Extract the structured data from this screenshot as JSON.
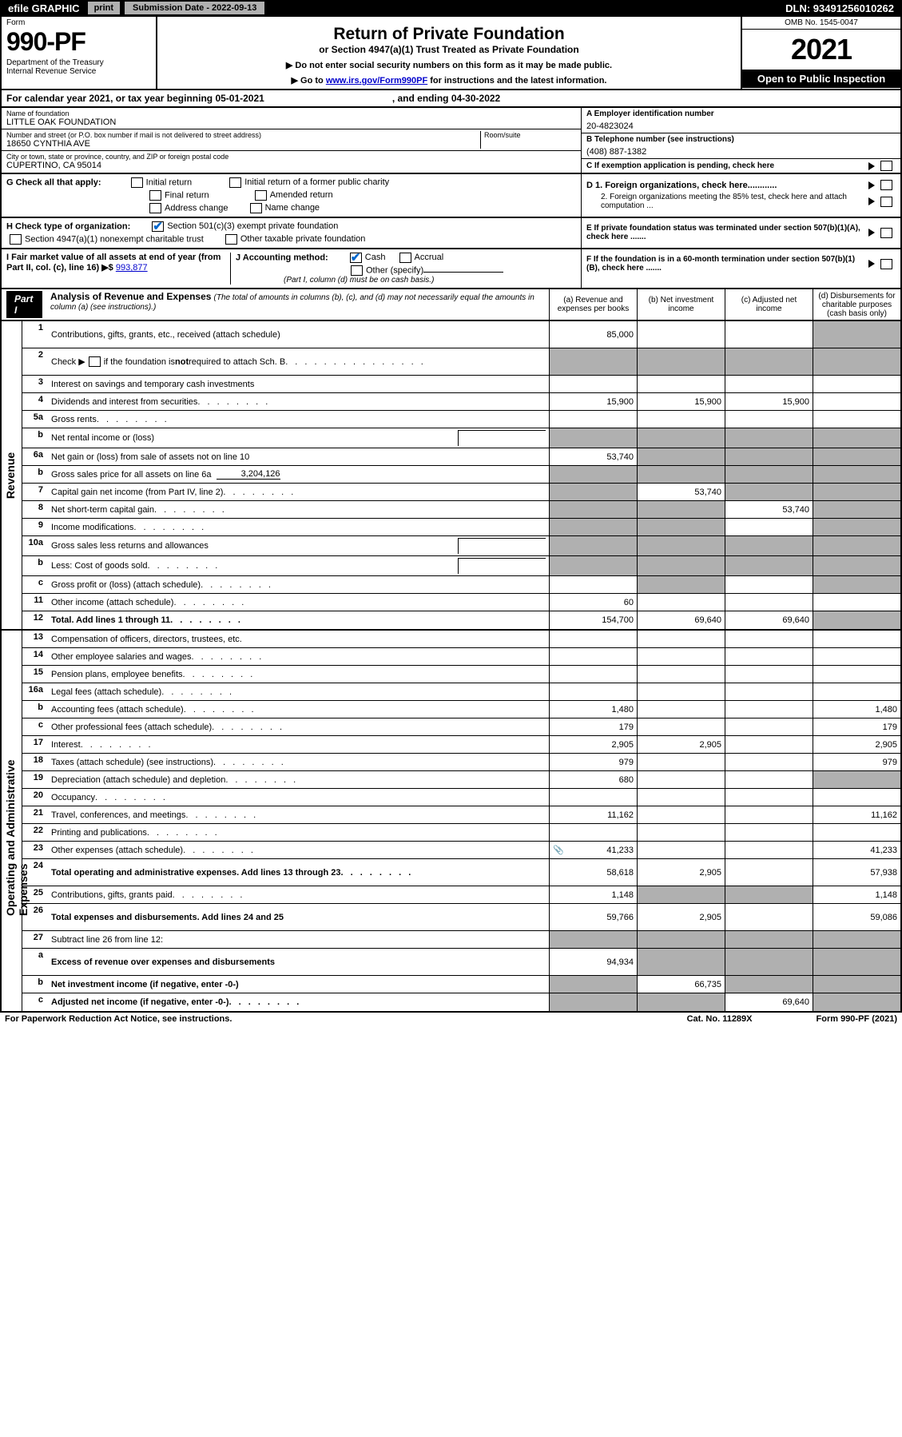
{
  "top": {
    "efile": "efile GRAPHIC",
    "print": "print",
    "sub_label": "Submission Date - 2022-09-13",
    "dln": "DLN: 93491256010262"
  },
  "header": {
    "form": "Form",
    "num": "990-PF",
    "dept": "Department of the Treasury\nInternal Revenue Service",
    "title": "Return of Private Foundation",
    "subtitle": "or Section 4947(a)(1) Trust Treated as Private Foundation",
    "note1": "▶ Do not enter social security numbers on this form as it may be made public.",
    "note2_pre": "▶ Go to ",
    "note2_link": "www.irs.gov/Form990PF",
    "note2_post": " for instructions and the latest information.",
    "omb": "OMB No. 1545-0047",
    "year": "2021",
    "open": "Open to Public Inspection"
  },
  "cal_year": {
    "pre": "For calendar year 2021, or tax year beginning 05-01-2021",
    "mid": ", and ending 04-30-2022"
  },
  "info": {
    "name_label": "Name of foundation",
    "name": "LITTLE OAK FOUNDATION",
    "addr_label": "Number and street (or P.O. box number if mail is not delivered to street address)",
    "addr": "18650 CYNTHIA AVE",
    "room_label": "Room/suite",
    "city_label": "City or town, state or province, country, and ZIP or foreign postal code",
    "city": "CUPERTINO, CA  95014",
    "ein_label": "A Employer identification number",
    "ein": "20-4823024",
    "phone_label": "B Telephone number (see instructions)",
    "phone": "(408) 887-1382",
    "c": "C If exemption application is pending, check here",
    "d1": "D 1. Foreign organizations, check here............",
    "d2": "2. Foreign organizations meeting the 85% test, check here and attach computation ...",
    "e": "E  If private foundation status was terminated under section 507(b)(1)(A), check here .......",
    "f": "F  If the foundation is in a 60-month termination under section 507(b)(1)(B), check here .......",
    "g_label": "G Check all that apply:",
    "g_opts": [
      "Initial return",
      "Initial return of a former public charity",
      "Final return",
      "Amended return",
      "Address change",
      "Name change"
    ],
    "h_label": "H Check type of organization:",
    "h_opts": [
      "Section 501(c)(3) exempt private foundation",
      "Section 4947(a)(1) nonexempt charitable trust",
      "Other taxable private foundation"
    ],
    "i_label": "I Fair market value of all assets at end of year (from Part II, col. (c), line 16) ▶$",
    "i_val": "993,877",
    "j_label": "J Accounting method:",
    "j_opts": [
      "Cash",
      "Accrual",
      "Other (specify)"
    ],
    "j_note": "(Part I, column (d) must be on cash basis.)"
  },
  "part1": {
    "label": "Part I",
    "title": "Analysis of Revenue and Expenses",
    "subtitle": "(The total of amounts in columns (b), (c), and (d) may not necessarily equal the amounts in column (a) (see instructions).)",
    "cols": [
      "(a)   Revenue and expenses per books",
      "(b)   Net investment income",
      "(c)   Adjusted net income",
      "(d)   Disbursements for charitable purposes (cash basis only)"
    ]
  },
  "vert": {
    "revenue": "Revenue",
    "expenses": "Operating and Administrative Expenses"
  },
  "rows": [
    {
      "n": "1",
      "d": "Contributions, gifts, grants, etc., received (attach schedule)",
      "a": "85,000",
      "tall": true,
      "shade_d": true
    },
    {
      "n": "2",
      "d": "Check ▶ ☐ if the foundation is not required to attach Sch. B",
      "html": true,
      "shade": [
        "a",
        "b",
        "c",
        "d"
      ],
      "tall": true
    },
    {
      "n": "3",
      "d": "Interest on savings and temporary cash investments"
    },
    {
      "n": "4",
      "d": "Dividends and interest from securities",
      "a": "15,900",
      "b": "15,900",
      "c": "15,900",
      "dots": true
    },
    {
      "n": "5a",
      "d": "Gross rents",
      "dots": true
    },
    {
      "n": "b",
      "d": "Net rental income or (loss)",
      "subbox": true,
      "shade": [
        "a",
        "b",
        "c",
        "d"
      ]
    },
    {
      "n": "6a",
      "d": "Net gain or (loss) from sale of assets not on line 10",
      "a": "53,740",
      "shade": [
        "b",
        "c",
        "d"
      ]
    },
    {
      "n": "b",
      "d": "Gross sales price for all assets on line 6a",
      "inline": "3,204,126",
      "shade": [
        "a",
        "b",
        "c",
        "d"
      ]
    },
    {
      "n": "7",
      "d": "Capital gain net income (from Part IV, line 2)",
      "b": "53,740",
      "dots": true,
      "shade": [
        "a",
        "c",
        "d"
      ]
    },
    {
      "n": "8",
      "d": "Net short-term capital gain",
      "c": "53,740",
      "dots": true,
      "shade": [
        "a",
        "b",
        "d"
      ]
    },
    {
      "n": "9",
      "d": "Income modifications",
      "dots": true,
      "shade": [
        "a",
        "b",
        "d"
      ]
    },
    {
      "n": "10a",
      "d": "Gross sales less returns and allowances",
      "subbox": true,
      "shade": [
        "a",
        "b",
        "c",
        "d"
      ]
    },
    {
      "n": "b",
      "d": "Less: Cost of goods sold",
      "subbox": true,
      "dots": true,
      "shade": [
        "a",
        "b",
        "c",
        "d"
      ]
    },
    {
      "n": "c",
      "d": "Gross profit or (loss) (attach schedule)",
      "dots": true,
      "shade": [
        "b",
        "d"
      ]
    },
    {
      "n": "11",
      "d": "Other income (attach schedule)",
      "a": "60",
      "dots": true
    },
    {
      "n": "12",
      "d": "Total. Add lines 1 through 11",
      "a": "154,700",
      "b": "69,640",
      "c": "69,640",
      "dots": true,
      "bold": true,
      "shade": [
        "d"
      ]
    }
  ],
  "exp_rows": [
    {
      "n": "13",
      "d": "Compensation of officers, directors, trustees, etc."
    },
    {
      "n": "14",
      "d": "Other employee salaries and wages",
      "dots": true
    },
    {
      "n": "15",
      "d": "Pension plans, employee benefits",
      "dots": true
    },
    {
      "n": "16a",
      "d": "Legal fees (attach schedule)",
      "dots": true
    },
    {
      "n": "b",
      "d": "Accounting fees (attach schedule)",
      "a": "1,480",
      "dd": "1,480",
      "dots": true
    },
    {
      "n": "c",
      "d": "Other professional fees (attach schedule)",
      "a": "179",
      "dd": "179",
      "dots": true
    },
    {
      "n": "17",
      "d": "Interest",
      "a": "2,905",
      "b": "2,905",
      "dd": "2,905",
      "dots": true
    },
    {
      "n": "18",
      "d": "Taxes (attach schedule) (see instructions)",
      "a": "979",
      "dd": "979",
      "dots": true
    },
    {
      "n": "19",
      "d": "Depreciation (attach schedule) and depletion",
      "a": "680",
      "dots": true,
      "shade": [
        "d"
      ]
    },
    {
      "n": "20",
      "d": "Occupancy",
      "dots": true
    },
    {
      "n": "21",
      "d": "Travel, conferences, and meetings",
      "a": "11,162",
      "dd": "11,162",
      "dots": true
    },
    {
      "n": "22",
      "d": "Printing and publications",
      "dots": true
    },
    {
      "n": "23",
      "d": "Other expenses (attach schedule)",
      "a": "41,233",
      "dd": "41,233",
      "icon": true,
      "dots": true
    },
    {
      "n": "24",
      "d": "Total operating and administrative expenses. Add lines 13 through 23",
      "a": "58,618",
      "b": "2,905",
      "dd": "57,938",
      "bold": true,
      "dots": true,
      "tall": true
    },
    {
      "n": "25",
      "d": "Contributions, gifts, grants paid",
      "a": "1,148",
      "dd": "1,148",
      "dots": true,
      "shade": [
        "b",
        "c"
      ]
    },
    {
      "n": "26",
      "d": "Total expenses and disbursements. Add lines 24 and 25",
      "a": "59,766",
      "b": "2,905",
      "dd": "59,086",
      "bold": true,
      "tall": true
    },
    {
      "n": "27",
      "d": "Subtract line 26 from line 12:",
      "shade": [
        "a",
        "b",
        "c",
        "d"
      ]
    },
    {
      "n": "a",
      "d": "Excess of revenue over expenses and disbursements",
      "a": "94,934",
      "bold": true,
      "shade": [
        "b",
        "c",
        "d"
      ],
      "tall": true
    },
    {
      "n": "b",
      "d": "Net investment income (if negative, enter -0-)",
      "b": "66,735",
      "bold": true,
      "shade": [
        "a",
        "c",
        "d"
      ]
    },
    {
      "n": "c",
      "d": "Adjusted net income (if negative, enter -0-)",
      "c": "69,640",
      "bold": true,
      "dots": true,
      "shade": [
        "a",
        "b",
        "d"
      ]
    }
  ],
  "footer": {
    "left": "For Paperwork Reduction Act Notice, see instructions.",
    "mid": "Cat. No. 11289X",
    "right": "Form 990-PF (2021)"
  }
}
